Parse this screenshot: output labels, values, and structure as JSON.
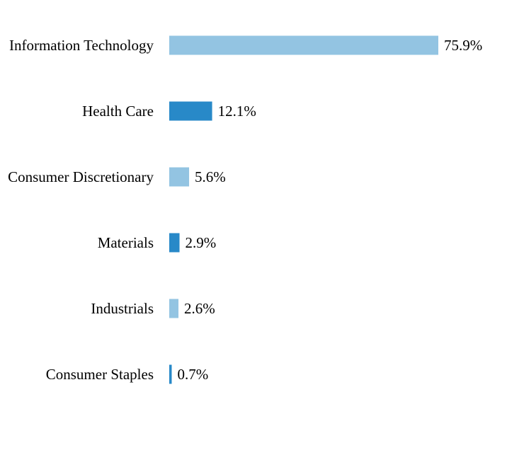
{
  "chart_data": {
    "type": "bar",
    "orientation": "horizontal",
    "title": "",
    "xlabel": "",
    "ylabel": "",
    "categories": [
      "Information Technology",
      "Health Care",
      "Consumer Discretionary",
      "Materials",
      "Industrials",
      "Consumer Staples"
    ],
    "values": [
      75.9,
      12.1,
      5.6,
      2.9,
      2.6,
      0.7
    ],
    "value_labels": [
      "75.9%",
      "12.1%",
      "5.6%",
      "2.9%",
      "2.6%",
      "0.7%"
    ],
    "xlim": [
      0,
      75.9
    ],
    "grid": false,
    "legend": "none",
    "colors": [
      "#93c4e2",
      "#2889c8"
    ]
  }
}
